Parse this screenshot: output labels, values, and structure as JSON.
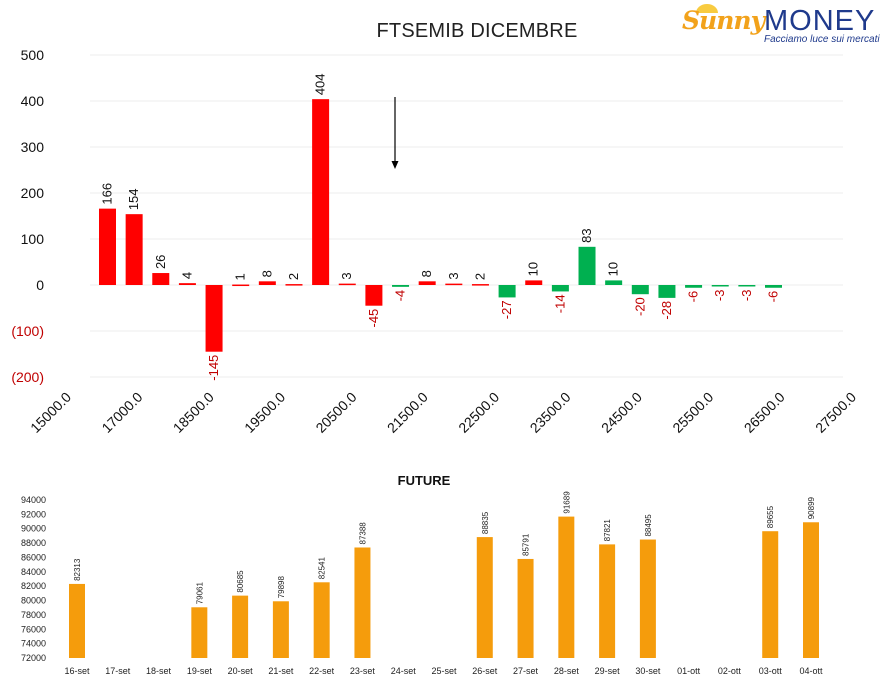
{
  "header": {
    "title": "FTSEMIB DICEMBRE"
  },
  "logo": {
    "part_a": "Sunny",
    "part_b": "MONEY",
    "tagline": "Facciamo luce sui mercati"
  },
  "colors": {
    "red": "#ff0000",
    "green": "#00b050",
    "orange": "#f59c0c",
    "negative_text": "#c00000"
  },
  "chart_data": [
    {
      "type": "bar",
      "title": "FTSEMIB DICEMBRE",
      "x_tick_labels": [
        "15000.0",
        "17000.0",
        "18500.0",
        "19500.0",
        "20500.0",
        "21500.0",
        "22500.0",
        "23500.0",
        "24500.0",
        "25500.0",
        "26500.0",
        "27500.0"
      ],
      "y_tick_labels": [
        "500",
        "400",
        "300",
        "200",
        "100",
        "0",
        "(100)",
        "(200)"
      ],
      "ylim": [
        -200,
        500
      ],
      "bars": [
        {
          "label": "166",
          "value": 166,
          "color": "red"
        },
        {
          "label": "154",
          "value": 154,
          "color": "red"
        },
        {
          "label": "26",
          "value": 26,
          "color": "red"
        },
        {
          "label": "4",
          "value": 4,
          "color": "red"
        },
        {
          "label": "-145",
          "value": -145,
          "color": "red"
        },
        {
          "label": "1",
          "value": 1,
          "color": "red"
        },
        {
          "label": "8",
          "value": 8,
          "color": "red"
        },
        {
          "label": "2",
          "value": 2,
          "color": "red"
        },
        {
          "label": "404",
          "value": 404,
          "color": "red"
        },
        {
          "label": "3",
          "value": 3,
          "color": "red"
        },
        {
          "label": "-45",
          "value": -45,
          "color": "red"
        },
        {
          "label": "-4",
          "value": -4,
          "color": "green"
        },
        {
          "label": "8",
          "value": 8,
          "color": "red"
        },
        {
          "label": "3",
          "value": 3,
          "color": "red"
        },
        {
          "label": "2",
          "value": 2,
          "color": "red"
        },
        {
          "label": "-27",
          "value": -27,
          "color": "green"
        },
        {
          "label": "10",
          "value": 10,
          "color": "red"
        },
        {
          "label": "-14",
          "value": -14,
          "color": "green"
        },
        {
          "label": "83",
          "value": 83,
          "color": "green"
        },
        {
          "label": "10",
          "value": 10,
          "color": "green"
        },
        {
          "label": "-20",
          "value": -20,
          "color": "green"
        },
        {
          "label": "-28",
          "value": -28,
          "color": "green"
        },
        {
          "label": "-6",
          "value": -6,
          "color": "green"
        },
        {
          "label": "-3",
          "value": -3,
          "color": "green"
        },
        {
          "label": "-3",
          "value": -3,
          "color": "green"
        },
        {
          "label": "-6",
          "value": -6,
          "color": "green"
        }
      ],
      "annotation": "down-arrow-marker",
      "grid": true,
      "legend": "none"
    },
    {
      "type": "bar",
      "title": "FUTURE",
      "categories": [
        "16-set",
        "17-set",
        "18-set",
        "19-set",
        "20-set",
        "21-set",
        "22-set",
        "23-set",
        "24-set",
        "25-set",
        "26-set",
        "27-set",
        "28-set",
        "29-set",
        "30-set",
        "01-ott",
        "02-ott",
        "03-ott",
        "04-ott"
      ],
      "values": [
        82313,
        null,
        null,
        79061,
        80685,
        79898,
        82541,
        87388,
        null,
        null,
        88835,
        85791,
        91689,
        87821,
        88495,
        null,
        null,
        89655,
        90899
      ],
      "y_tick_labels": [
        "94000",
        "92000",
        "90000",
        "88000",
        "86000",
        "84000",
        "82000",
        "80000",
        "78000",
        "76000",
        "74000",
        "72000"
      ],
      "ylim": [
        72000,
        94000
      ],
      "color": "orange",
      "legend": "none"
    }
  ]
}
